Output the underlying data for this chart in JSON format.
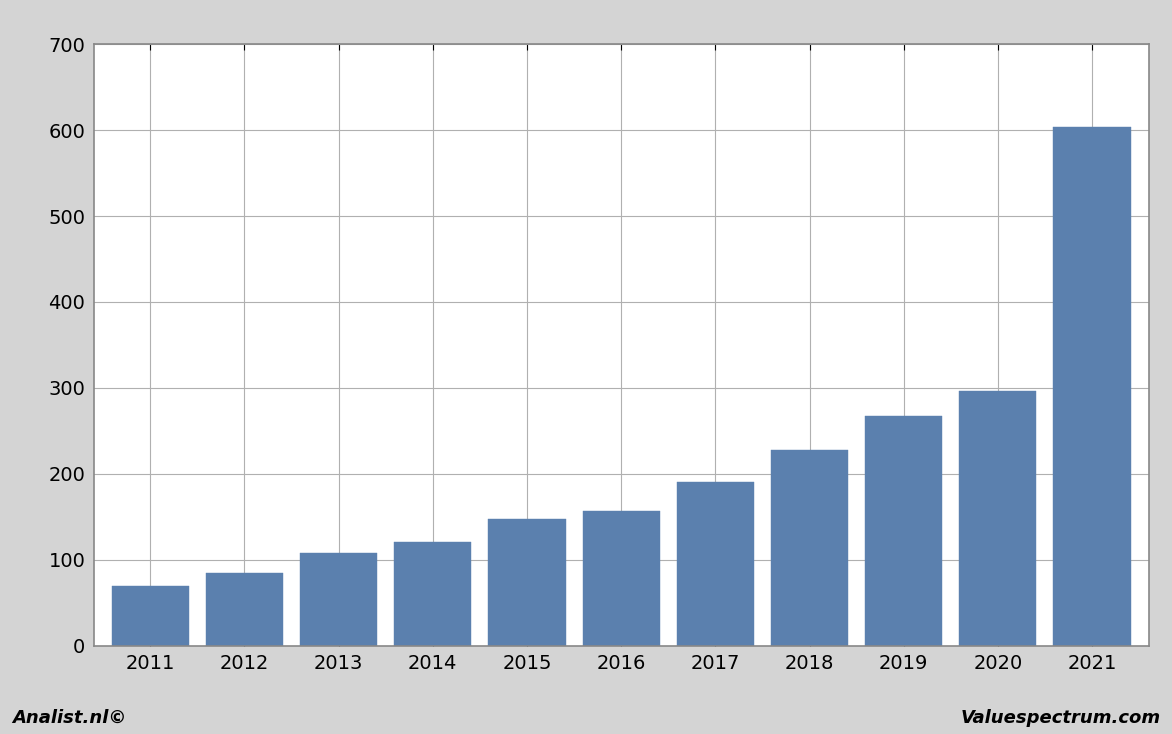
{
  "years": [
    "2011",
    "2012",
    "2013",
    "2014",
    "2015",
    "2016",
    "2017",
    "2018",
    "2019",
    "2020",
    "2021"
  ],
  "values": [
    70,
    85,
    108,
    121,
    148,
    157,
    191,
    228,
    267,
    297,
    604
  ],
  "bar_color": "#5b80ae",
  "background_color": "#d4d4d4",
  "plot_background_color": "#ffffff",
  "ylim": [
    0,
    700
  ],
  "yticks": [
    0,
    100,
    200,
    300,
    400,
    500,
    600,
    700
  ],
  "grid_color": "#b0b0b0",
  "bar_edge_color": "#5b80ae",
  "footer_left": "Analist.nl©",
  "footer_right": "Valuespectrum.com",
  "footer_fontsize": 13,
  "tick_fontsize": 14,
  "border_color": "#888888",
  "bar_width": 0.82
}
